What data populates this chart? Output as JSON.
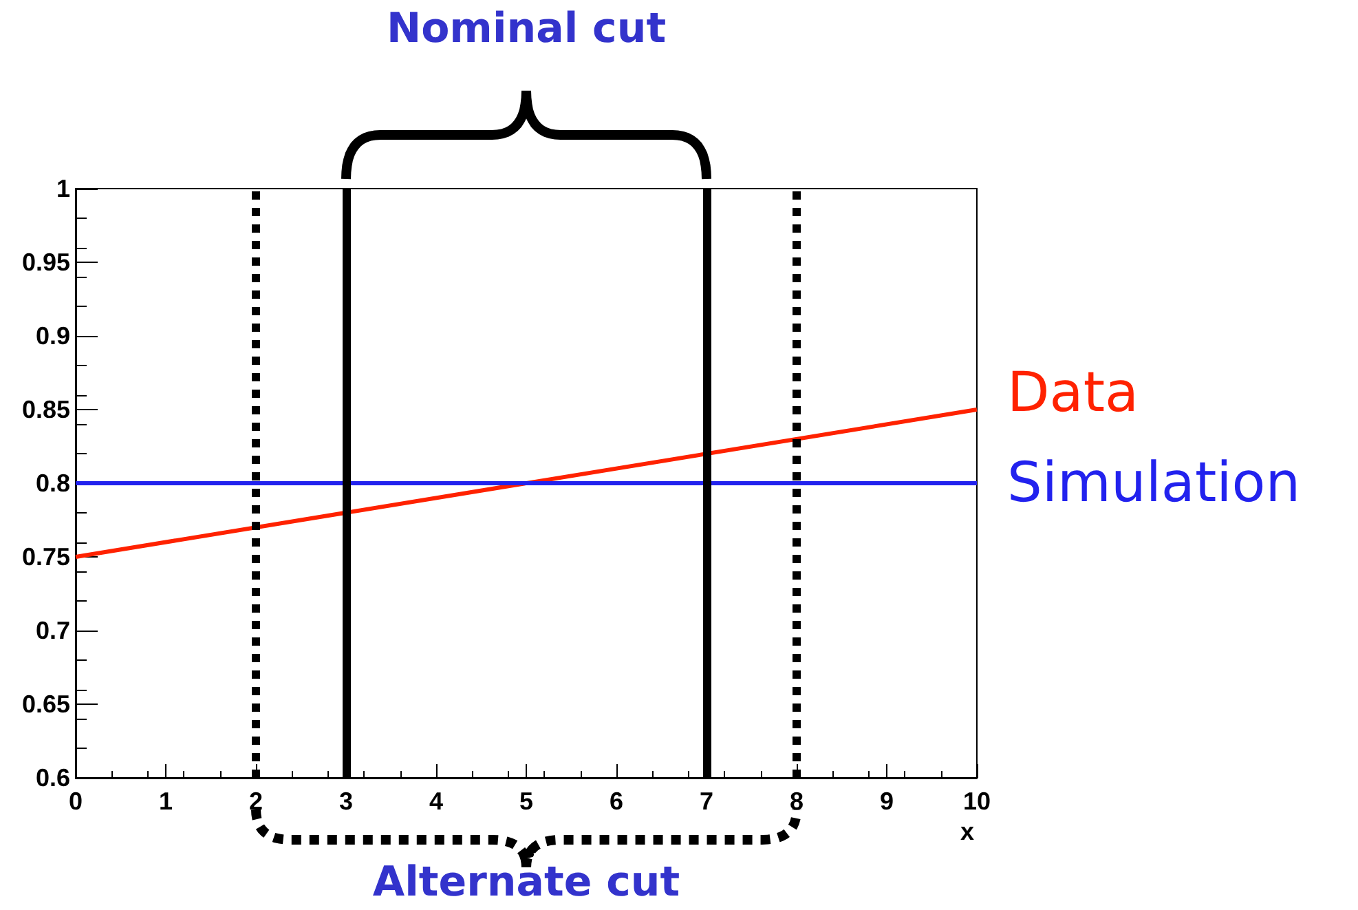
{
  "chart_data": {
    "type": "line",
    "xlabel": "x",
    "x": [
      0,
      10
    ],
    "series": [
      {
        "name": "Data",
        "color": "#ff2200",
        "values": [
          0.75,
          0.85
        ]
      },
      {
        "name": "Simulation",
        "color": "#2222ee",
        "values": [
          0.8,
          0.8
        ]
      }
    ],
    "xlim": [
      0,
      10
    ],
    "xticks": [
      0,
      1,
      2,
      3,
      4,
      5,
      6,
      7,
      8,
      9,
      10
    ],
    "ylim": [
      0.6,
      1
    ],
    "yticks": [
      0.6,
      0.65,
      0.7,
      0.75,
      0.8,
      0.85,
      0.9,
      0.95,
      1
    ],
    "grid": false,
    "legend": false,
    "marker": "none",
    "line_style": "solid",
    "ref_lines": [
      {
        "axis": "x",
        "value": 3,
        "color": "#000000",
        "line_style": "solid"
      },
      {
        "axis": "x",
        "value": 7,
        "color": "#000000",
        "line_style": "solid"
      },
      {
        "axis": "x",
        "value": 2,
        "color": "#000000",
        "line_style": "dotted"
      },
      {
        "axis": "x",
        "value": 8,
        "color": "#000000",
        "line_style": "dotted"
      }
    ],
    "annotations": [
      "Nominal cut",
      "Alternate cut"
    ]
  }
}
